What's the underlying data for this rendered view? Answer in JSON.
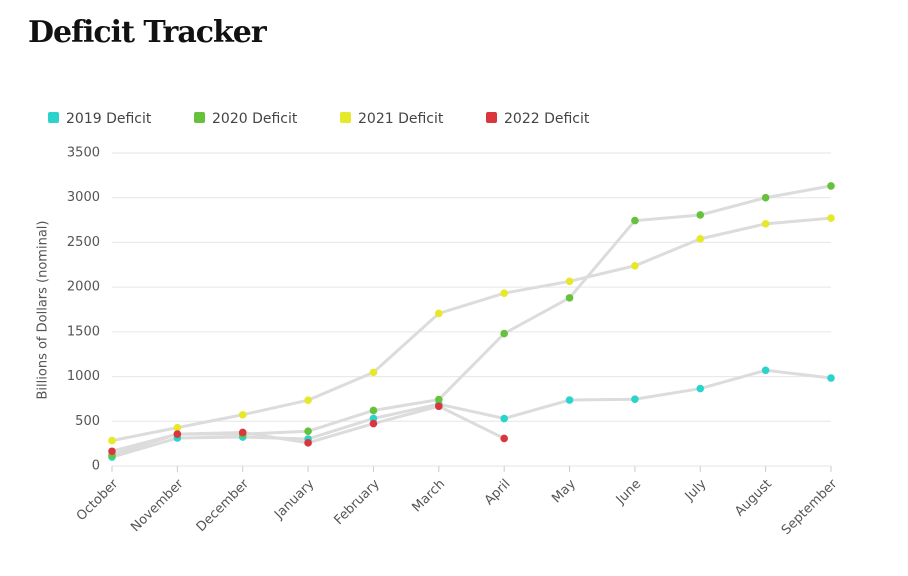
{
  "chart_data": {
    "type": "line",
    "title": "Deficit Tracker",
    "y_label": "Billions of Dollars (nominal)",
    "categories": [
      "October",
      "November",
      "December",
      "January",
      "February",
      "March",
      "April",
      "May",
      "June",
      "July",
      "August",
      "September"
    ],
    "ylim": [
      0,
      3500
    ],
    "yticks": [
      0,
      500,
      1000,
      1500,
      2000,
      2500,
      3000,
      3500
    ],
    "grid": true,
    "legend": "top-left",
    "line_color": "#dcdcdc",
    "series": [
      {
        "name": "2019 Deficit",
        "color": "#2ad4cc",
        "values": [
          100,
          313,
          324,
          302,
          532,
          691,
          531,
          738,
          747,
          866,
          1070,
          984
        ]
      },
      {
        "name": "2020 Deficit",
        "color": "#66c23a",
        "values": [
          123,
          357,
          356,
          389,
          621,
          743,
          1481,
          1880,
          2744,
          2807,
          3000,
          3132
        ]
      },
      {
        "name": "2021 Deficit",
        "color": "#e6e82a",
        "values": [
          284,
          429,
          573,
          736,
          1047,
          1706,
          1932,
          2065,
          2239,
          2540,
          2708,
          2772
        ]
      },
      {
        "name": "2022 Deficit",
        "color": "#d9363e",
        "values": [
          165,
          357,
          375,
          259,
          475,
          668,
          308,
          null,
          null,
          null,
          null,
          null
        ]
      }
    ]
  }
}
